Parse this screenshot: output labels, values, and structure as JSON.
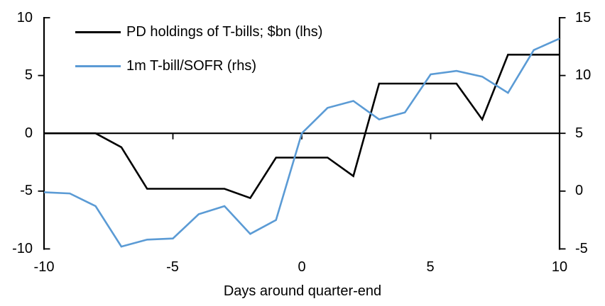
{
  "chart_data": {
    "type": "line",
    "title": "",
    "xlabel": "Days around quarter-end",
    "ylabel_left": "",
    "ylabel_right": "",
    "grid": false,
    "legend_position": "top-left-inside",
    "x": [
      -10,
      -9,
      -8,
      -7,
      -6,
      -5,
      -4,
      -3,
      -2,
      -1,
      0,
      1,
      2,
      3,
      4,
      5,
      6,
      7,
      8,
      9,
      10
    ],
    "series": [
      {
        "name": "PD holdings of T-bills; $bn (lhs)",
        "axis": "left",
        "color": "#000000",
        "values": [
          0,
          0,
          0,
          -1.2,
          -4.8,
          -4.8,
          -4.8,
          -4.8,
          -5.6,
          -2.1,
          -2.1,
          -2.1,
          -3.7,
          4.3,
          4.3,
          4.3,
          4.3,
          1.2,
          6.8,
          6.8,
          6.8
        ]
      },
      {
        "name": "1m T-bill/SOFR (rhs)",
        "axis": "right",
        "color": "#5B9BD5",
        "values": [
          -0.1,
          -0.2,
          -1.3,
          -4.8,
          -4.2,
          -4.1,
          -2.0,
          -1.3,
          -3.7,
          -2.5,
          5.0,
          7.2,
          7.8,
          6.2,
          6.8,
          10.1,
          10.4,
          9.9,
          8.5,
          12.2,
          13.2
        ]
      }
    ],
    "yaxis_left": {
      "range": [
        -10,
        10
      ],
      "ticks": [
        10,
        5,
        0,
        -5,
        -10
      ]
    },
    "yaxis_right": {
      "range": [
        -5,
        15
      ],
      "ticks": [
        15,
        10,
        5,
        0,
        -5
      ]
    },
    "xaxis": {
      "range": [
        -10,
        10
      ],
      "ticks": [
        -10,
        -5,
        0,
        5,
        10
      ]
    }
  }
}
